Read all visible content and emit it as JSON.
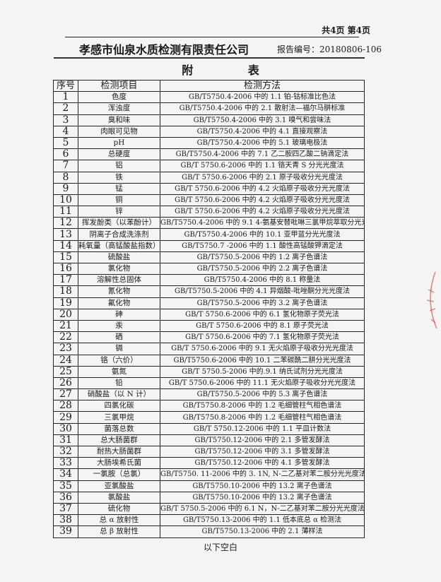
{
  "page_indicator": "共4页 第4页",
  "company": "孝感市仙泉水质检测有限责任公司",
  "report_number": "报告编号：20180806-106",
  "title": "附 表",
  "table": {
    "headers": [
      "序号",
      "检测项目",
      "检测方法"
    ],
    "rows": [
      [
        "1",
        "色度",
        "GB/T5750.4-2006  中的 1.1 铂-钴标准比色法"
      ],
      [
        "2",
        "浑浊度",
        "GB/T5750.4-2006  中的 2.1 散射法—福尔马肼标准"
      ],
      [
        "3",
        "臭和味",
        "GB/T5750.4-2006  中的 3.1  嗅气和尝味法"
      ],
      [
        "4",
        "肉眼可见物",
        "GB/T5750.4-2006  中的 4.1 直接观察法"
      ],
      [
        "5",
        "pH",
        "GB/T5750.4-2006  中的 5.1 玻璃电极法"
      ],
      [
        "6",
        "总硬度",
        "GB/T5750.4-2006  中的 7.1 乙二胺四乙酸二钠滴定法"
      ],
      [
        "7",
        "铝",
        "GB/T 5750.6-2006 中的 1.1 铬天青 S 分光光度法"
      ],
      [
        "8",
        "铁",
        "GB/T 5750.6-2006 中的 2.1 原子吸收分光光度法"
      ],
      [
        "9",
        "锰",
        "GB/T 5750.6-2006 中的 4.2 火焰原子吸收分光光度法"
      ],
      [
        "10",
        "铜",
        "GB/T 5750.6-2006 中的 4.2 火焰原子吸收分光光度法"
      ],
      [
        "11",
        "锌",
        "GB/T 5750.6-2006 中的 4.2 火焰原子吸收分光光度法"
      ],
      [
        "12",
        "挥发酚类（以苯酚计）",
        "GB/T5750.4-2006 中的 9.1   4-氨基安替吡啉三氯甲烷萃取分光光度法"
      ],
      [
        "13",
        "阴离子合成洗涤剂",
        "GB/T5750.4-2006 中的 10.1 亚甲蓝分光光度法"
      ],
      [
        "14",
        "耗氧量（高锰酸盐指数）",
        "GB/T5750.7 -2006  中的 1.1 酸性高锰酸钾滴定法"
      ],
      [
        "15",
        "硫酸盐",
        "GB/T5750.5-2006  中的 1.2 离子色谱法"
      ],
      [
        "16",
        "氯化物",
        "GB/T5750.5-2006  中的 2.2 离子色谱法"
      ],
      [
        "17",
        "溶解性总固体",
        "GB/T5750.4-2006  中的 8.1  称量法"
      ],
      [
        "18",
        "氰化物",
        "GB/T5750.5-2006  中的 4.1 异烟酸-吡唑酮分光光度法"
      ],
      [
        "19",
        "氟化物",
        "GB/T5750.5-2006  中的 3.2 离子色谱法"
      ],
      [
        "20",
        "砷",
        "GB/T 5750.6-2006 中的 6.1 氢化物原子荧光法"
      ],
      [
        "21",
        "汞",
        "GB/T 5750.6-2006 中的 8.1 原子荧光法"
      ],
      [
        "22",
        "硒",
        "GB/T 5750.6-2006 中的 7.1 氢化物原子荧光法"
      ],
      [
        "23",
        "镉",
        "GB/T 5750.6-2006 中的 9.1 无火焰原子吸收分光光度法"
      ],
      [
        "24",
        "铬（六价）",
        "GB/T5750.6-2006 中的 10.1 二苯碳酰二肼分光光度法"
      ],
      [
        "25",
        "氨氮",
        "GB/T 5750.5-2006 中的.9.1 纳氏试剂分光光度法"
      ],
      [
        "26",
        "铅",
        "GB/T 5750.6-2006 中的 11.1 无火焰原子吸收分光光度法"
      ],
      [
        "27",
        "硝酸盐（以 N 计）",
        "GB/T5750.5-2006  中的 5.3 离子色谱法"
      ],
      [
        "28",
        "四氯化碳",
        "GB/T5750.8-2006  中的 1.2  毛细管柱气相色谱法"
      ],
      [
        "29",
        "三氯甲烷",
        "GB/T5750.8-2006  中的 1.2  毛细管柱气相色谱法"
      ],
      [
        "30",
        "菌落总数",
        "GB/T 5750.12-2006 中的 1.1 平皿计数法"
      ],
      [
        "31",
        "总大肠菌群",
        "GB/T5750.12-2006 中的 2.1 多管发酵法"
      ],
      [
        "32",
        "耐热大肠菌群",
        "GB/T5750.12-2006 中的 3.1 多管发酵法"
      ],
      [
        "33",
        "大肠埃希氏菌",
        "GB/T5750.12-2006 中的 4.1 多管发酵法"
      ],
      [
        "34",
        "一氯胺（总氯）",
        "GB/T5750. 11-2006 中的 3. 1N, N-二乙基对苯二胺分光光度法"
      ],
      [
        "35",
        "亚氯酸盐",
        "GB/T5750.10-2006  中的 13.2 离子色谱法"
      ],
      [
        "36",
        "氯酸盐",
        "GB/T5750.10-2006  中的 13.2 离子色谱法"
      ],
      [
        "37",
        "硫化物",
        "GB/T 5750.5-2006 中的 6.1   N，N-二乙基对苯二胺分光光度法"
      ],
      [
        "38",
        "总 α 放射性",
        "GB/T5750.13-2006  中的 1.1 低本底总 α 检测法"
      ],
      [
        "39",
        "总 β 放射性",
        "GB/T5750.13-2006  中的 2.1 薄样法"
      ]
    ]
  },
  "footer_note": "以下空白",
  "colors": {
    "paper": "#f4f4f2",
    "ink": "#1a1a1a",
    "stamp": "#d23a3a"
  }
}
